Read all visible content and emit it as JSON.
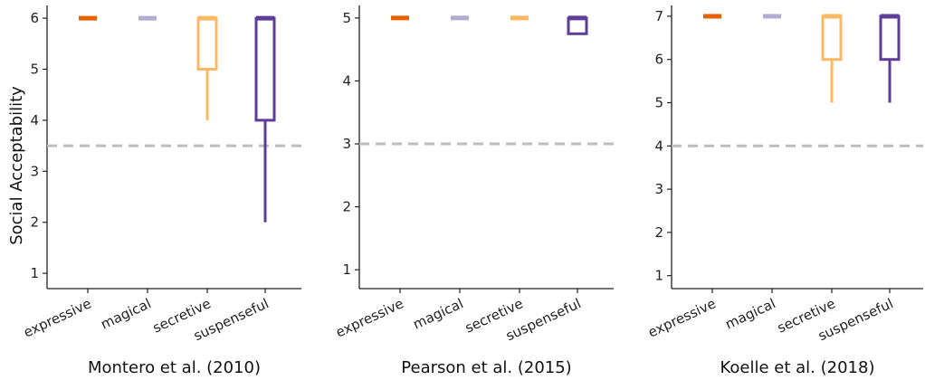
{
  "chart_data": {
    "type": "box",
    "ylabel": "Social Acceptability",
    "categories": [
      "expressive",
      "magical",
      "secretive",
      "suspenseful"
    ],
    "colors": {
      "expressive": "#e66101",
      "magical": "#b2abd2",
      "secretive": "#fdb863",
      "suspenseful": "#5e3c99",
      "reference_line": "#bdbdbd"
    },
    "panels": [
      {
        "title": "Montero et al. (2010)",
        "ylim": [
          0.7,
          6.25
        ],
        "yticks": [
          1,
          2,
          3,
          4,
          5,
          6
        ],
        "reference_line": 3.5,
        "boxes": [
          {
            "category": "expressive",
            "whisker_low": 6,
            "q1": 6,
            "median": 6,
            "q3": 6,
            "whisker_high": 6
          },
          {
            "category": "magical",
            "whisker_low": 6,
            "q1": 6,
            "median": 6,
            "q3": 6,
            "whisker_high": 6
          },
          {
            "category": "secretive",
            "whisker_low": 4,
            "q1": 5,
            "median": 6,
            "q3": 6,
            "whisker_high": 6
          },
          {
            "category": "suspenseful",
            "whisker_low": 2,
            "q1": 4,
            "median": 6,
            "q3": 6,
            "whisker_high": 6
          }
        ]
      },
      {
        "title": "Pearson et al. (2015)",
        "ylim": [
          0.7,
          5.2
        ],
        "yticks": [
          1,
          2,
          3,
          4,
          5
        ],
        "reference_line": 3,
        "boxes": [
          {
            "category": "expressive",
            "whisker_low": 5,
            "q1": 5,
            "median": 5,
            "q3": 5,
            "whisker_high": 5
          },
          {
            "category": "magical",
            "whisker_low": 5,
            "q1": 5,
            "median": 5,
            "q3": 5,
            "whisker_high": 5
          },
          {
            "category": "secretive",
            "whisker_low": 5,
            "q1": 5,
            "median": 5,
            "q3": 5,
            "whisker_high": 5
          },
          {
            "category": "suspenseful",
            "whisker_low": 4.75,
            "q1": 4.75,
            "median": 5,
            "q3": 5,
            "whisker_high": 5
          }
        ]
      },
      {
        "title": "Koelle et al. (2018)",
        "ylim": [
          0.7,
          7.25
        ],
        "yticks": [
          1,
          2,
          3,
          4,
          5,
          6,
          7
        ],
        "reference_line": 4,
        "boxes": [
          {
            "category": "expressive",
            "whisker_low": 7,
            "q1": 7,
            "median": 7,
            "q3": 7,
            "whisker_high": 7
          },
          {
            "category": "magical",
            "whisker_low": 7,
            "q1": 7,
            "median": 7,
            "q3": 7,
            "whisker_high": 7
          },
          {
            "category": "secretive",
            "whisker_low": 5,
            "q1": 6,
            "median": 7,
            "q3": 7,
            "whisker_high": 7
          },
          {
            "category": "suspenseful",
            "whisker_low": 5,
            "q1": 6,
            "median": 7,
            "q3": 7,
            "whisker_high": 7
          }
        ]
      }
    ]
  }
}
